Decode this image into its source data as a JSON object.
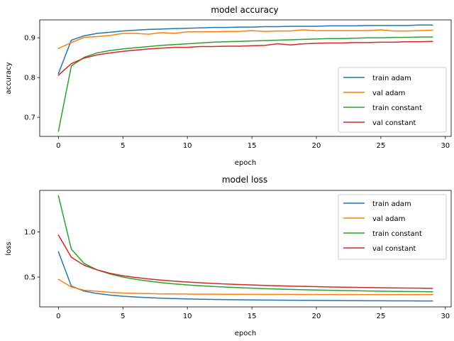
{
  "colors": {
    "blue": "#1f77b4",
    "orange": "#ff7f0e",
    "green": "#2ca02c",
    "red": "#d62728"
  },
  "chart_data": [
    {
      "type": "line",
      "title": "model accuracy",
      "xlabel": "epoch",
      "ylabel": "accuracy",
      "xlim": [
        -1.45,
        30.45
      ],
      "ylim": [
        0.652,
        0.945
      ],
      "xticks": [
        0,
        5,
        10,
        15,
        20,
        25,
        30
      ],
      "yticks": [
        0.7,
        0.8,
        0.9
      ],
      "ytick_labels": [
        "0.7",
        "0.8",
        "0.9"
      ],
      "legend_loc": "lower right",
      "grid": false,
      "x": [
        0,
        1,
        2,
        3,
        4,
        5,
        6,
        7,
        8,
        9,
        10,
        11,
        12,
        13,
        14,
        15,
        16,
        17,
        18,
        19,
        20,
        21,
        22,
        23,
        24,
        25,
        26,
        27,
        28,
        29
      ],
      "series": [
        {
          "name": "train adam",
          "color": "#1f77b4",
          "values": [
            0.81,
            0.894,
            0.905,
            0.911,
            0.914,
            0.917,
            0.919,
            0.921,
            0.922,
            0.923,
            0.924,
            0.925,
            0.926,
            0.926,
            0.927,
            0.927,
            0.928,
            0.928,
            0.929,
            0.929,
            0.929,
            0.93,
            0.93,
            0.93,
            0.931,
            0.931,
            0.931,
            0.931,
            0.932,
            0.932
          ]
        },
        {
          "name": "val adam",
          "color": "#ff7f0e",
          "values": [
            0.873,
            0.888,
            0.901,
            0.903,
            0.906,
            0.911,
            0.911,
            0.909,
            0.913,
            0.911,
            0.915,
            0.915,
            0.915,
            0.916,
            0.916,
            0.918,
            0.916,
            0.917,
            0.917,
            0.92,
            0.918,
            0.918,
            0.918,
            0.918,
            0.918,
            0.92,
            0.917,
            0.917,
            0.918,
            0.919
          ]
        },
        {
          "name": "train constant",
          "color": "#2ca02c",
          "values": [
            0.665,
            0.829,
            0.851,
            0.862,
            0.868,
            0.872,
            0.875,
            0.878,
            0.881,
            0.883,
            0.885,
            0.887,
            0.889,
            0.89,
            0.891,
            0.892,
            0.893,
            0.894,
            0.895,
            0.896,
            0.897,
            0.898,
            0.898,
            0.899,
            0.9,
            0.9,
            0.901,
            0.901,
            0.902,
            0.902
          ]
        },
        {
          "name": "val constant",
          "color": "#d62728",
          "values": [
            0.806,
            0.835,
            0.849,
            0.857,
            0.862,
            0.866,
            0.869,
            0.872,
            0.874,
            0.876,
            0.876,
            0.878,
            0.878,
            0.879,
            0.879,
            0.88,
            0.881,
            0.885,
            0.882,
            0.885,
            0.886,
            0.887,
            0.887,
            0.888,
            0.888,
            0.889,
            0.889,
            0.89,
            0.89,
            0.891
          ]
        }
      ]
    },
    {
      "type": "line",
      "title": "model loss",
      "xlabel": "epoch",
      "ylabel": "loss",
      "xlim": [
        -1.45,
        30.45
      ],
      "ylim": [
        0.17,
        1.46
      ],
      "xticks": [
        0,
        5,
        10,
        15,
        20,
        25,
        30
      ],
      "yticks": [
        0.5,
        1.0
      ],
      "ytick_labels": [
        "0.5",
        "1.0"
      ],
      "legend_loc": "upper right",
      "grid": false,
      "x": [
        0,
        1,
        2,
        3,
        4,
        5,
        6,
        7,
        8,
        9,
        10,
        11,
        12,
        13,
        14,
        15,
        16,
        17,
        18,
        19,
        20,
        21,
        22,
        23,
        24,
        25,
        26,
        27,
        28,
        29
      ],
      "series": [
        {
          "name": "train adam",
          "color": "#1f77b4",
          "values": [
            0.78,
            0.4,
            0.345,
            0.318,
            0.301,
            0.288,
            0.279,
            0.272,
            0.266,
            0.262,
            0.258,
            0.255,
            0.253,
            0.251,
            0.249,
            0.248,
            0.246,
            0.245,
            0.244,
            0.243,
            0.242,
            0.241,
            0.24,
            0.239,
            0.238,
            0.238,
            0.237,
            0.237,
            0.236,
            0.236
          ]
        },
        {
          "name": "val adam",
          "color": "#ff7f0e",
          "values": [
            0.475,
            0.39,
            0.355,
            0.343,
            0.331,
            0.323,
            0.319,
            0.317,
            0.314,
            0.314,
            0.312,
            0.311,
            0.311,
            0.31,
            0.31,
            0.309,
            0.309,
            0.309,
            0.309,
            0.308,
            0.308,
            0.308,
            0.307,
            0.307,
            0.307,
            0.306,
            0.306,
            0.306,
            0.306,
            0.306
          ]
        },
        {
          "name": "train constant",
          "color": "#2ca02c",
          "values": [
            1.4,
            0.81,
            0.65,
            0.58,
            0.535,
            0.5,
            0.475,
            0.455,
            0.438,
            0.425,
            0.413,
            0.404,
            0.396,
            0.389,
            0.383,
            0.377,
            0.372,
            0.368,
            0.364,
            0.36,
            0.357,
            0.354,
            0.351,
            0.349,
            0.346,
            0.344,
            0.342,
            0.34,
            0.339,
            0.337
          ]
        },
        {
          "name": "val constant",
          "color": "#d62728",
          "values": [
            0.965,
            0.72,
            0.63,
            0.58,
            0.542,
            0.515,
            0.495,
            0.48,
            0.466,
            0.455,
            0.445,
            0.437,
            0.43,
            0.424,
            0.418,
            0.413,
            0.408,
            0.404,
            0.4,
            0.397,
            0.394,
            0.391,
            0.388,
            0.386,
            0.384,
            0.382,
            0.38,
            0.378,
            0.377,
            0.375
          ]
        }
      ]
    }
  ]
}
